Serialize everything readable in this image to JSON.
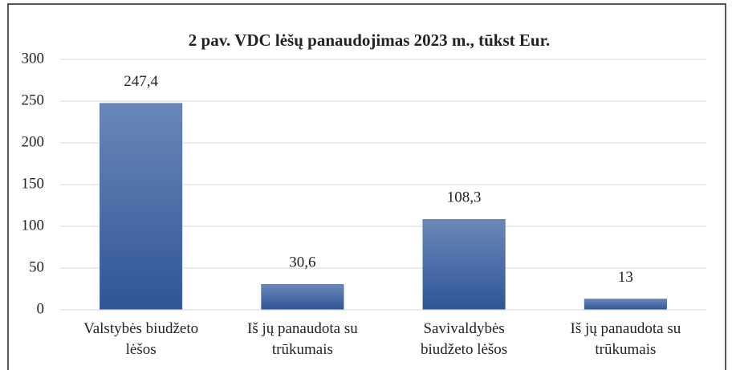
{
  "chart_data": {
    "type": "bar",
    "title": "2 pav. VDC lėšų panaudojimas 2023 m., tūkst Eur.",
    "categories": [
      "Valstybės biudžeto lėšos",
      "Iš jų panaudota su trūkumais",
      "Savivaldybės biudžeto lėšos",
      "Iš jų panaudota su trūkumais"
    ],
    "values": [
      247.4,
      30.6,
      108.3,
      13
    ],
    "value_labels": [
      "247,4",
      "30,6",
      "108,3",
      "13"
    ],
    "color": "#4a6ea8",
    "ylim": [
      0,
      300
    ],
    "yticks": [
      0,
      50,
      100,
      150,
      200,
      250,
      300
    ],
    "grid": true
  }
}
